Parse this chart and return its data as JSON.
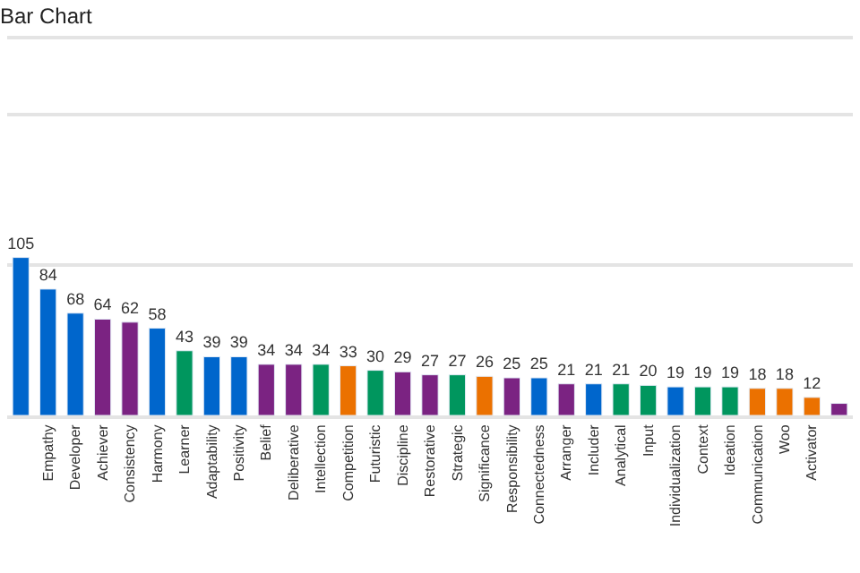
{
  "chart_data": {
    "type": "bar",
    "title": "Bar Chart",
    "categories": [
      null,
      "Empathy",
      "Developer",
      "Achiever",
      "Consistency",
      "Harmony",
      "Learner",
      "Adaptability",
      "Positivity",
      "Belief",
      "Deliberative",
      "Intellection",
      "Competition",
      "Futuristic",
      "Discipline",
      "Restorative",
      "Strategic",
      "Significance",
      "Responsibility",
      "Connectedness",
      "Arranger",
      "Includer",
      "Analytical",
      "Input",
      "Individualization",
      "Context",
      "Ideation",
      "Communication",
      "Woo",
      "Activator",
      null
    ],
    "values": [
      105,
      84,
      68,
      64,
      62,
      58,
      43,
      39,
      39,
      34,
      34,
      34,
      33,
      30,
      29,
      27,
      27,
      26,
      25,
      25,
      21,
      21,
      21,
      20,
      19,
      19,
      19,
      18,
      18,
      12,
      8
    ],
    "value_labels": [
      "105",
      "84",
      "68",
      "64",
      "62",
      "58",
      "43",
      "39",
      "39",
      "34",
      "34",
      "34",
      "33",
      "30",
      "29",
      "27",
      "27",
      "26",
      "25",
      "25",
      "21",
      "21",
      "21",
      "20",
      "19",
      "19",
      "19",
      "18",
      "18",
      "12",
      null
    ],
    "colors": [
      "#0066cc",
      "#0066cc",
      "#0066cc",
      "#7b2382",
      "#7b2382",
      "#0066cc",
      "#00965e",
      "#0066cc",
      "#0066cc",
      "#7b2382",
      "#7b2382",
      "#00965e",
      "#eb7100",
      "#00965e",
      "#7b2382",
      "#7b2382",
      "#00965e",
      "#eb7100",
      "#7b2382",
      "#0066cc",
      "#7b2382",
      "#0066cc",
      "#00965e",
      "#00965e",
      "#0066cc",
      "#00965e",
      "#00965e",
      "#eb7100",
      "#eb7100",
      "#eb7100",
      "#7b2382"
    ],
    "ylim": [
      0,
      250
    ],
    "yticks": [
      {
        "value": 100,
        "label": null
      },
      {
        "value": 200,
        "label": null
      }
    ],
    "grid": "y",
    "legend": false,
    "tick_labels": "x"
  }
}
